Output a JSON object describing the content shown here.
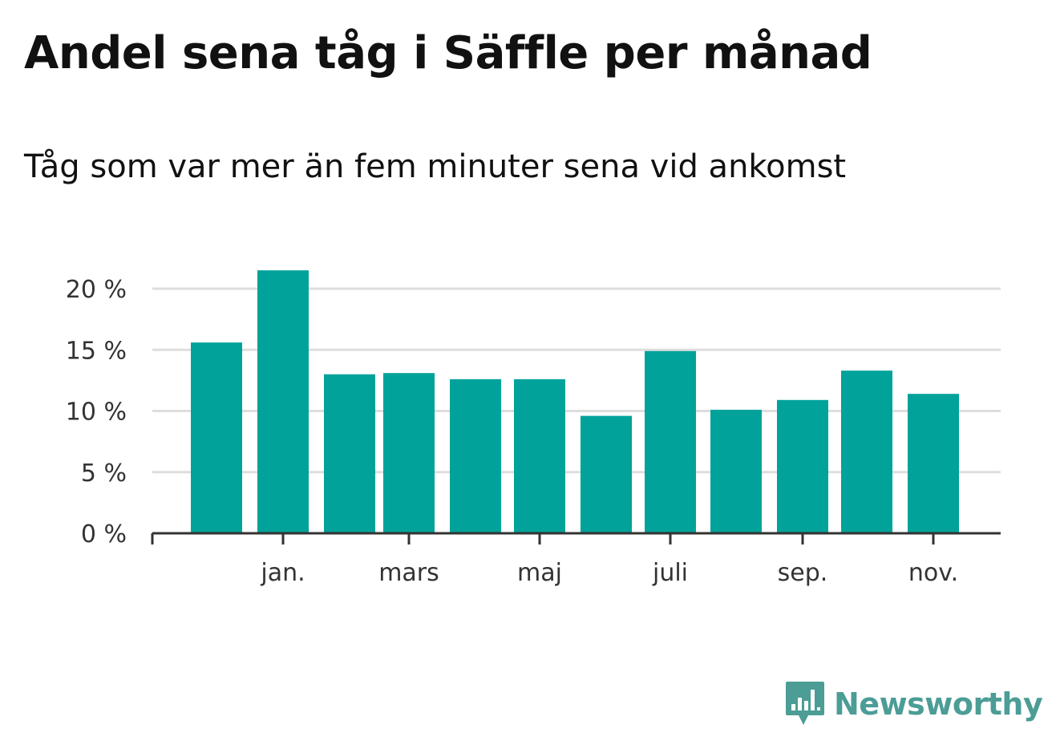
{
  "title": "Andel sena tåg i Säffle per månad",
  "subtitle": "Tåg som var mer än fem minuter sena vid ankomst",
  "brand": {
    "name": "Newsworthy",
    "color": "#4b9d96"
  },
  "colors": {
    "bar": "#00a29a",
    "grid": "#dddddd",
    "axis": "#333333"
  },
  "chart_data": {
    "type": "bar",
    "title": "Andel sena tåg i Säffle per månad",
    "subtitle": "Tåg som var mer än fem minuter sena vid ankomst",
    "xlabel": "",
    "ylabel": "",
    "ylim": [
      0,
      20
    ],
    "grid": true,
    "legend": "none",
    "y_ticks": [
      {
        "value": 0,
        "label": "0 %"
      },
      {
        "value": 5,
        "label": "5 %"
      },
      {
        "value": 10,
        "label": "10 %"
      },
      {
        "value": 15,
        "label": "15 %"
      },
      {
        "value": 20,
        "label": "20 %"
      }
    ],
    "x_ticks": [
      {
        "index": 1,
        "label": "jan."
      },
      {
        "index": 3,
        "label": "mars"
      },
      {
        "index": 5,
        "label": "maj"
      },
      {
        "index": 7,
        "label": "juli"
      },
      {
        "index": 9,
        "label": "sep."
      },
      {
        "index": 11,
        "label": "nov."
      }
    ],
    "series": [
      {
        "name": "Andel sena tåg",
        "values": [
          15.6,
          21.5,
          13.0,
          13.1,
          12.6,
          12.6,
          9.6,
          14.9,
          10.1,
          10.9,
          13.3,
          11.4
        ]
      }
    ]
  }
}
